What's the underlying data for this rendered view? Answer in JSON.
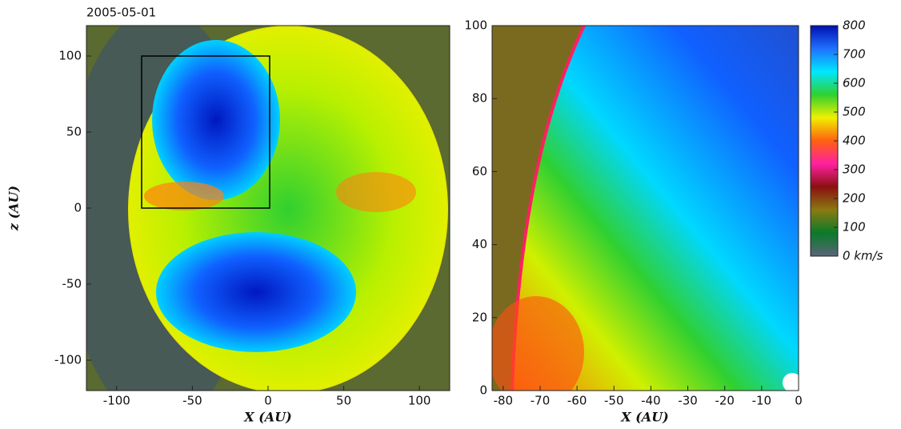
{
  "chart_data": [
    {
      "type": "heatmap",
      "title": "2005-05-01",
      "xlabel": "X (AU)",
      "ylabel": "z (AU)",
      "xlim": [
        -120,
        120
      ],
      "xticks": [
        -100,
        -50,
        0,
        50,
        100
      ],
      "ylim": [
        -120,
        120
      ],
      "yticks": [
        -100,
        -50,
        0,
        50,
        100
      ]
    },
    {
      "type": "heatmap",
      "xlabel": "X (AU)",
      "xlim": [
        -83,
        0
      ],
      "xticks": [
        -80,
        -70,
        -60,
        -50,
        -40,
        -30,
        -20,
        -10,
        0
      ],
      "ylim": [
        0,
        100
      ],
      "yticks": [
        0,
        20,
        40,
        60,
        80,
        100
      ]
    },
    {
      "type": "colorbar",
      "ylim": [
        0,
        800
      ],
      "yticks": [
        {
          "value": 0,
          "label": "0 km/s"
        },
        100,
        200,
        300,
        400,
        500,
        600,
        700,
        800
      ],
      "colors": [
        "#5a6478",
        "#0a7a2a",
        "#8a7a10",
        "#8a1010",
        "#ff20a0",
        "#ff6010",
        "#f0f000",
        "#30d030",
        "#00e8ff",
        "#2070ff",
        "#0010b0"
      ]
    }
  ]
}
